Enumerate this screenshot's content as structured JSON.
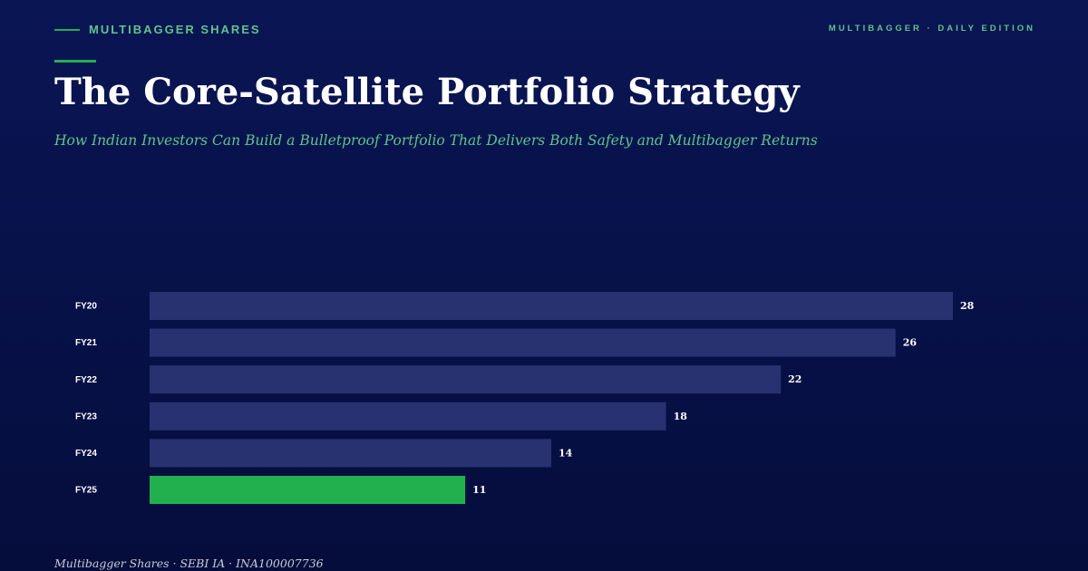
{
  "header": {
    "brand": "MULTIBAGGER SHARES",
    "edition": "MULTIBAGGER · DAILY EDITION"
  },
  "title": "The Core-Satellite Portfolio Strategy",
  "subtitle": "How Indian Investors Can Build a Bulletproof Portfolio That Delivers Both Safety and Multibagger Returns",
  "footer": "Multibagger Shares · SEBI IA · INA100007736",
  "colors": {
    "bar": "#283270",
    "highlight": "#22b04f",
    "accent": "#5fc489",
    "background": "#07124a"
  },
  "chart_data": {
    "type": "bar",
    "orientation": "horizontal",
    "categories": [
      "FY20",
      "FY21",
      "FY22",
      "FY23",
      "FY24",
      "FY25"
    ],
    "values": [
      28,
      26,
      22,
      18,
      14,
      11
    ],
    "highlight_category": "FY25",
    "xlim": [
      0,
      28
    ],
    "grid": false,
    "legend": "none",
    "data_labels": true
  }
}
